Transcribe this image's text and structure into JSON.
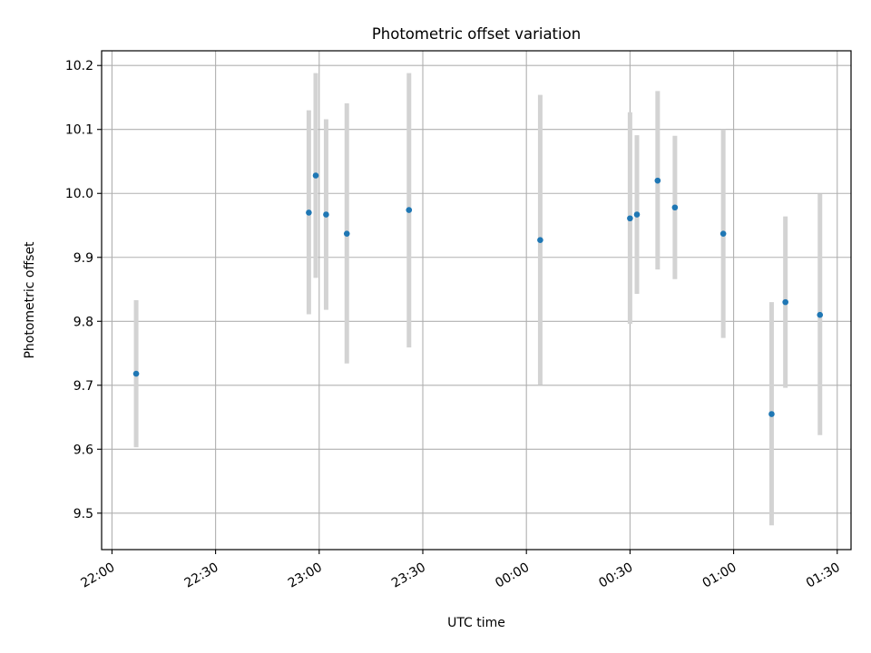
{
  "chart_data": {
    "type": "scatter",
    "title": "Photometric offset variation",
    "xlabel": "UTC time",
    "ylabel": "Photometric offset",
    "x_axis": {
      "kind": "time",
      "range": [
        "21:57",
        "01:34"
      ],
      "ticks": [
        "22:00",
        "22:30",
        "23:00",
        "23:30",
        "00:00",
        "00:30",
        "01:00",
        "01:30"
      ]
    },
    "y_axis": {
      "range": [
        9.443,
        10.223
      ],
      "ticks": [
        "9.5",
        "9.6",
        "9.7",
        "9.8",
        "9.9",
        "10.0",
        "10.1",
        "10.2"
      ]
    },
    "grid": true,
    "colors": {
      "point": "#1f77b4",
      "errorbar": "#d3d3d3",
      "grid": "#b0b0b0"
    },
    "points": [
      {
        "time": "22:07",
        "y": 9.718,
        "low": 9.603,
        "high": 9.833
      },
      {
        "time": "22:57",
        "y": 9.97,
        "low": 9.811,
        "high": 10.13
      },
      {
        "time": "22:59",
        "y": 10.028,
        "low": 9.868,
        "high": 10.188
      },
      {
        "time": "23:02",
        "y": 9.967,
        "low": 9.818,
        "high": 10.116
      },
      {
        "time": "23:08",
        "y": 9.937,
        "low": 9.734,
        "high": 10.141
      },
      {
        "time": "23:26",
        "y": 9.974,
        "low": 9.759,
        "high": 10.188
      },
      {
        "time": "00:04",
        "y": 9.927,
        "low": 9.701,
        "high": 10.154
      },
      {
        "time": "00:30",
        "y": 9.961,
        "low": 9.796,
        "high": 10.127
      },
      {
        "time": "00:32",
        "y": 9.967,
        "low": 9.843,
        "high": 10.091
      },
      {
        "time": "00:38",
        "y": 10.02,
        "low": 9.881,
        "high": 10.16
      },
      {
        "time": "00:43",
        "y": 9.978,
        "low": 9.866,
        "high": 10.09
      },
      {
        "time": "00:57",
        "y": 9.937,
        "low": 9.774,
        "high": 10.1
      },
      {
        "time": "01:11",
        "y": 9.655,
        "low": 9.481,
        "high": 9.83
      },
      {
        "time": "01:15",
        "y": 9.83,
        "low": 9.696,
        "high": 9.964
      },
      {
        "time": "01:25",
        "y": 9.81,
        "low": 9.622,
        "high": 9.999
      }
    ]
  }
}
